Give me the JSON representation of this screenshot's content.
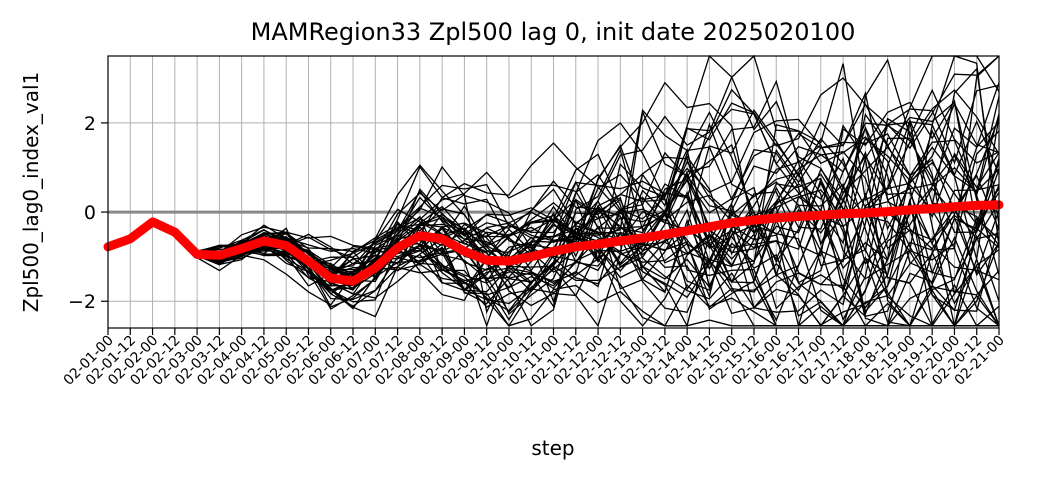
{
  "chart_data": {
    "type": "line",
    "title": "MAMRegion33 Zpl500 lag 0, init date 2025020100",
    "xlabel": "step",
    "ylabel": "Zpl500_lag0_index_val1",
    "categories": [
      "02-01-00",
      "02-01-12",
      "02-02-00",
      "02-02-12",
      "02-03-00",
      "02-03-12",
      "02-04-00",
      "02-04-12",
      "02-05-00",
      "02-05-12",
      "02-06-00",
      "02-06-12",
      "02-07-00",
      "02-07-12",
      "02-08-00",
      "02-08-12",
      "02-09-00",
      "02-09-12",
      "02-10-00",
      "02-10-12",
      "02-11-00",
      "02-11-12",
      "02-12-00",
      "02-12-12",
      "02-13-00",
      "02-13-12",
      "02-14-00",
      "02-14-12",
      "02-15-00",
      "02-15-12",
      "02-16-00",
      "02-16-12",
      "02-17-00",
      "02-17-12",
      "02-18-00",
      "02-18-12",
      "02-19-00",
      "02-19-12",
      "02-20-00",
      "02-20-12",
      "02-21-00"
    ],
    "ylim": [
      -2.6,
      3.5
    ],
    "yticks": [
      -2,
      0,
      2
    ],
    "grid": true,
    "zero_line": true,
    "ensemble_members": 50,
    "ensemble_color": "#000000",
    "mean_color": "#ff0000",
    "zero_line_color": "#888888",
    "ensemble_mean": [
      -0.78,
      -0.6,
      -0.22,
      -0.45,
      -0.95,
      -0.97,
      -0.82,
      -0.65,
      -0.75,
      -1.1,
      -1.48,
      -1.55,
      -1.25,
      -0.8,
      -0.53,
      -0.6,
      -0.88,
      -1.08,
      -1.1,
      -1.0,
      -0.88,
      -0.78,
      -0.72,
      -0.65,
      -0.58,
      -0.5,
      -0.42,
      -0.33,
      -0.24,
      -0.18,
      -0.13,
      -0.1,
      -0.07,
      -0.04,
      -0.02,
      0.01,
      0.05,
      0.08,
      0.12,
      0.15,
      0.16
    ]
  }
}
